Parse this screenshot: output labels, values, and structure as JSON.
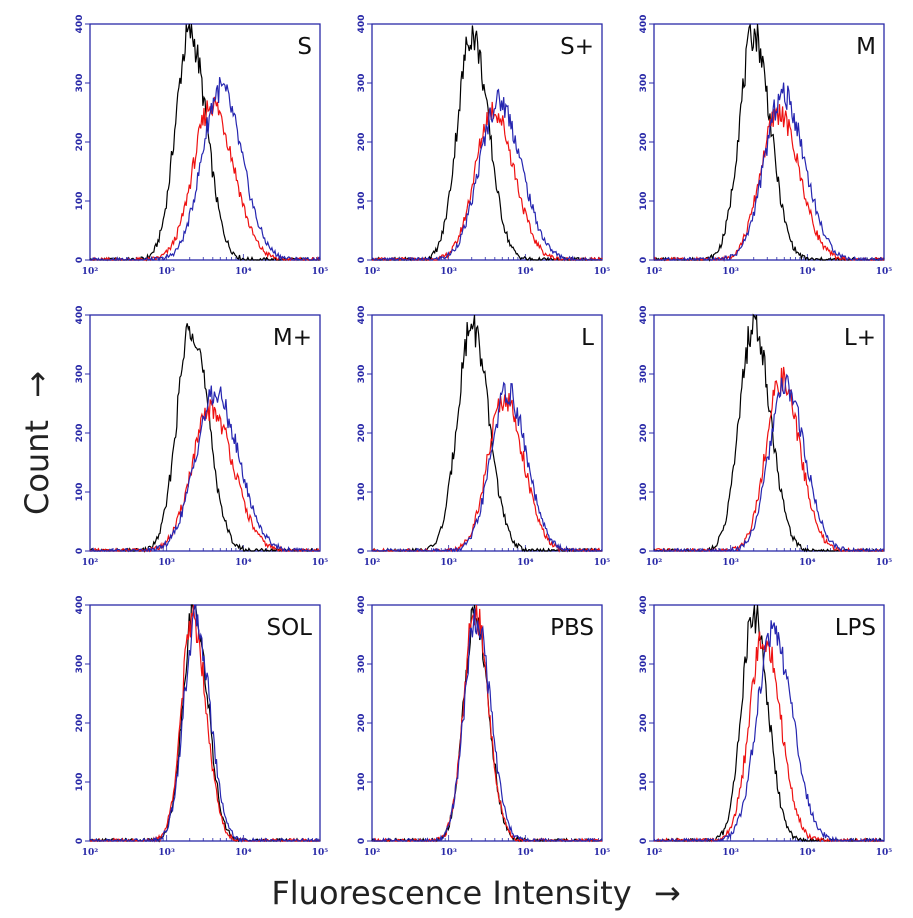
{
  "axes": {
    "y_title": "Count",
    "x_title": "Fluorescence Intensity",
    "arrow_y": "→",
    "arrow_x": "→"
  },
  "chart_data": {
    "type": "histogram-grid",
    "xscale": "log",
    "xlim": [
      100,
      100000
    ],
    "ylim": [
      0,
      400
    ],
    "xtick_labels": [
      "10²",
      "10³",
      "10⁴",
      "10⁵"
    ],
    "xtick_values": [
      100,
      1000,
      10000,
      100000
    ],
    "ytick_labels": [
      "0",
      "100",
      "200",
      "300",
      "400"
    ],
    "ytick_values": [
      0,
      100,
      200,
      300,
      400
    ],
    "line_colors": {
      "black": "#000000",
      "red": "#ee1111",
      "blue": "#2626b0"
    },
    "frame_color": "#2a2aa8",
    "panels": [
      {
        "label": "S",
        "black": {
          "center": 2000,
          "peak": 385,
          "width": 0.2
        },
        "red": {
          "center": 3900,
          "peak": 265,
          "width": 0.26
        },
        "blue": {
          "center": 5000,
          "peak": 290,
          "width": 0.26
        }
      },
      {
        "label": "S+",
        "black": {
          "center": 2000,
          "peak": 385,
          "width": 0.2
        },
        "red": {
          "center": 3800,
          "peak": 255,
          "width": 0.25
        },
        "blue": {
          "center": 4500,
          "peak": 270,
          "width": 0.27
        }
      },
      {
        "label": "M",
        "black": {
          "center": 2000,
          "peak": 385,
          "width": 0.2
        },
        "red": {
          "center": 4200,
          "peak": 250,
          "width": 0.25
        },
        "blue": {
          "center": 4800,
          "peak": 280,
          "width": 0.26
        }
      },
      {
        "label": "M+",
        "black": {
          "center": 2100,
          "peak": 385,
          "width": 0.2
        },
        "red": {
          "center": 3800,
          "peak": 240,
          "width": 0.27
        },
        "blue": {
          "center": 4300,
          "peak": 265,
          "width": 0.28
        }
      },
      {
        "label": "L",
        "black": {
          "center": 2000,
          "peak": 385,
          "width": 0.2
        },
        "red": {
          "center": 5300,
          "peak": 260,
          "width": 0.23
        },
        "blue": {
          "center": 5800,
          "peak": 270,
          "width": 0.23
        }
      },
      {
        "label": "L+",
        "black": {
          "center": 2000,
          "peak": 385,
          "width": 0.2
        },
        "red": {
          "center": 4600,
          "peak": 290,
          "width": 0.22
        },
        "blue": {
          "center": 5200,
          "peak": 280,
          "width": 0.23
        }
      },
      {
        "label": "SOL",
        "black": {
          "center": 2300,
          "peak": 395,
          "width": 0.16
        },
        "red": {
          "center": 2200,
          "peak": 380,
          "width": 0.16
        },
        "blue": {
          "center": 2400,
          "peak": 375,
          "width": 0.17
        }
      },
      {
        "label": "PBS",
        "black": {
          "center": 2200,
          "peak": 385,
          "width": 0.16
        },
        "red": {
          "center": 2200,
          "peak": 390,
          "width": 0.16
        },
        "blue": {
          "center": 2300,
          "peak": 380,
          "width": 0.17
        }
      },
      {
        "label": "LPS",
        "black": {
          "center": 2000,
          "peak": 385,
          "width": 0.17
        },
        "red": {
          "center": 2700,
          "peak": 350,
          "width": 0.2
        },
        "blue": {
          "center": 3600,
          "peak": 355,
          "width": 0.23
        }
      }
    ]
  }
}
